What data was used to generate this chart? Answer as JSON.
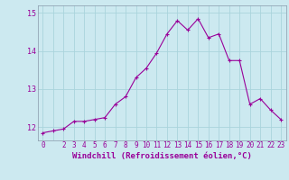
{
  "x": [
    0,
    1,
    2,
    3,
    4,
    5,
    6,
    7,
    8,
    9,
    10,
    11,
    12,
    13,
    14,
    15,
    16,
    17,
    18,
    19,
    20,
    21,
    22,
    23
  ],
  "y": [
    11.85,
    11.9,
    11.95,
    12.15,
    12.15,
    12.2,
    12.25,
    12.6,
    12.8,
    13.3,
    13.55,
    13.95,
    14.45,
    14.8,
    14.55,
    14.85,
    14.35,
    14.45,
    13.75,
    13.75,
    12.6,
    12.75,
    12.45,
    12.2
  ],
  "line_color": "#990099",
  "marker": "+",
  "markersize": 3,
  "linewidth": 0.8,
  "markeredgewidth": 0.8,
  "xlabel": "Windchill (Refroidissement éolien,°C)",
  "xlabel_color": "#990099",
  "xlabel_fontsize": 6.5,
  "ylabel_ticks": [
    12,
    13,
    14,
    15
  ],
  "xtick_labels": [
    "0",
    "",
    "2",
    "3",
    "4",
    "5",
    "6",
    "7",
    "8",
    "9",
    "10",
    "11",
    "12",
    "13",
    "14",
    "15",
    "16",
    "17",
    "18",
    "19",
    "20",
    "21",
    "22",
    "23"
  ],
  "xlim": [
    -0.5,
    23.5
  ],
  "ylim": [
    11.65,
    15.2
  ],
  "background_color": "#cce9f0",
  "grid_color": "#aad4dc",
  "tick_color": "#990099",
  "tick_fontsize": 5.5,
  "spine_color": "#8899aa"
}
